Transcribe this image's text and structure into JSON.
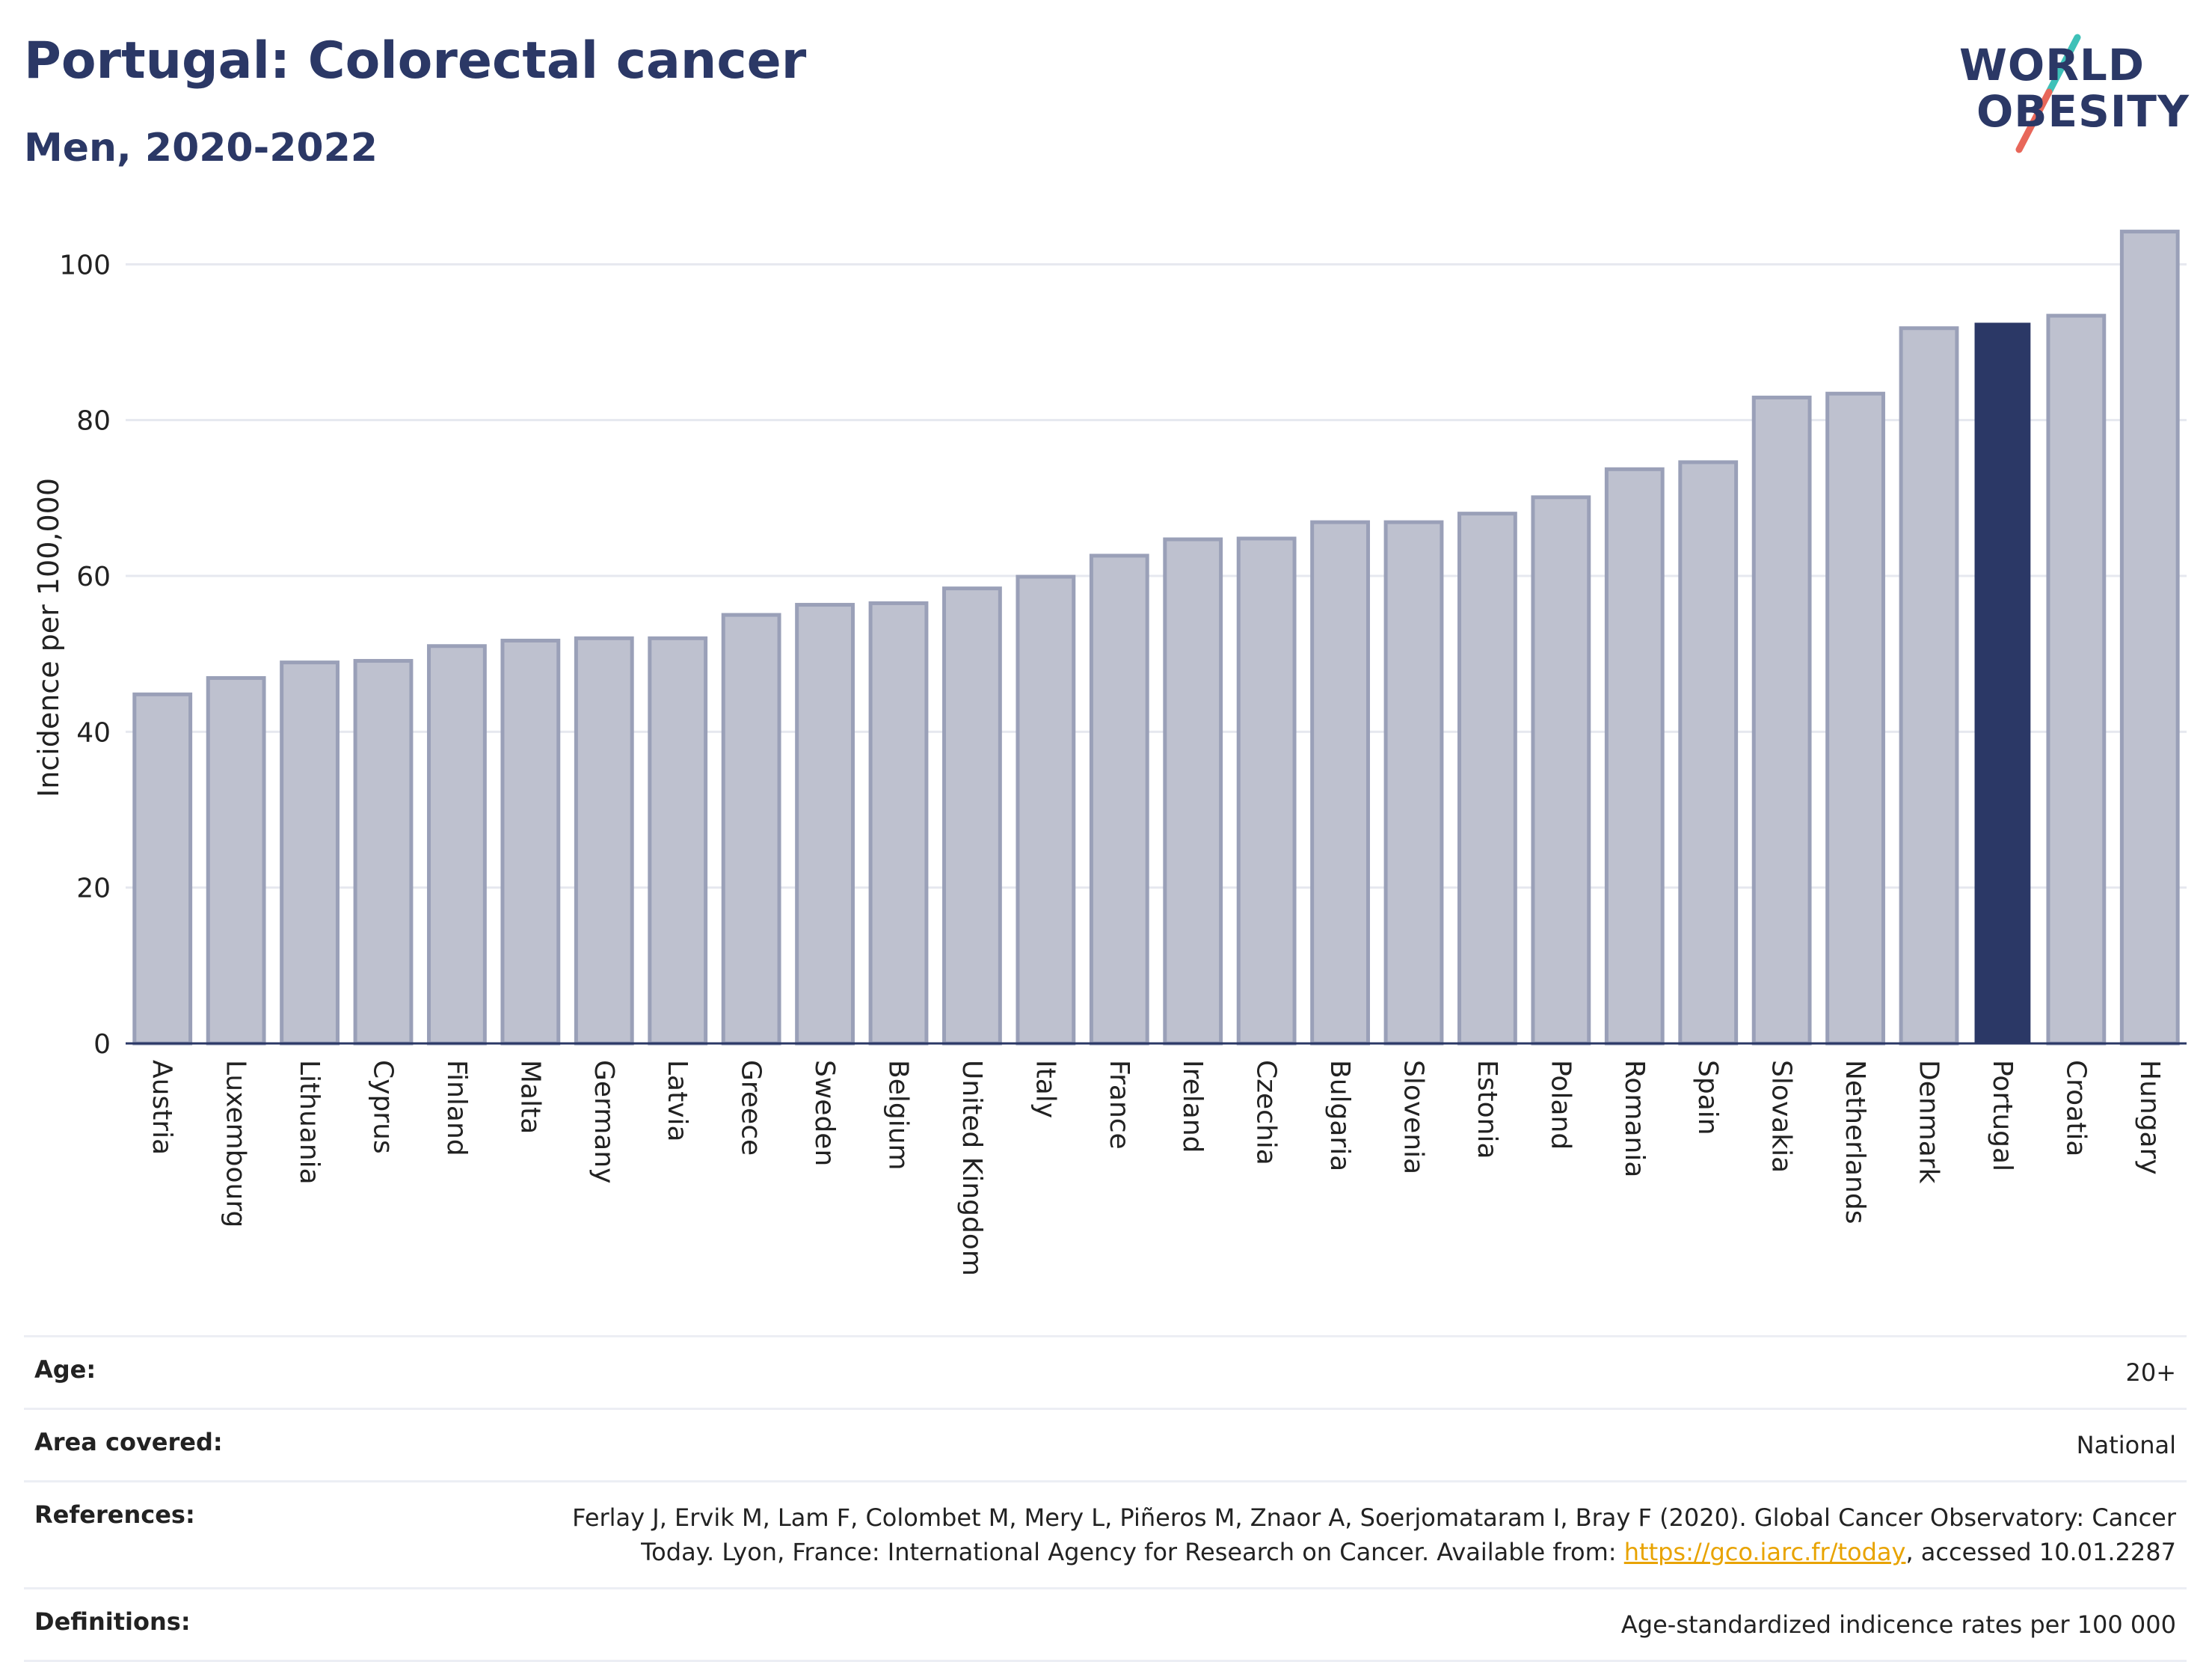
{
  "header": {
    "title": "Portugal: Colorectal cancer",
    "subtitle": "Men, 2020-2022"
  },
  "logo": {
    "line1": "WORLD",
    "line2": "OBESITY",
    "colors": {
      "text": "#2b3866",
      "slash_top": "#3ec1b8",
      "slash_bottom": "#e8675a"
    }
  },
  "chart_data": {
    "type": "bar",
    "title": "",
    "ylabel": "Incidence per 100,000",
    "xlabel": "",
    "ylim": [
      0,
      108
    ],
    "yticks": [
      0,
      20,
      40,
      60,
      80,
      100
    ],
    "grid": true,
    "categories": [
      "Austria",
      "Luxembourg",
      "Lithuania",
      "Cyprus",
      "Finland",
      "Malta",
      "Germany",
      "Latvia",
      "Greece",
      "Sweden",
      "Belgium",
      "United Kingdom",
      "Italy",
      "France",
      "Ireland",
      "Czechia",
      "Bulgaria",
      "Slovenia",
      "Estonia",
      "Poland",
      "Romania",
      "Spain",
      "Slovakia",
      "Netherlands",
      "Denmark",
      "Portugal",
      "Croatia",
      "Hungary"
    ],
    "values": [
      44.8,
      46.9,
      48.9,
      49.1,
      51.0,
      51.7,
      52.0,
      52.0,
      55.0,
      56.3,
      56.5,
      58.4,
      59.9,
      62.6,
      64.7,
      64.8,
      66.9,
      66.9,
      68.0,
      70.1,
      73.7,
      74.6,
      82.9,
      83.4,
      91.8,
      92.5,
      93.4,
      104.2
    ],
    "highlight": "Portugal",
    "colors": {
      "bar": "#bec1cf",
      "bar_edge": "#9aa0b8",
      "highlight": "#2b3866",
      "grid": "#e6e8ef",
      "axis": "#2b3866"
    }
  },
  "info_table": {
    "age": {
      "label": "Age:",
      "value": "20+"
    },
    "area": {
      "label": "Area covered:",
      "value": "National"
    },
    "references": {
      "label": "References:",
      "text_before": "Ferlay J, Ervik M, Lam F, Colombet M, Mery L, Piñeros M, Znaor A, Soerjomataram I, Bray F (2020). Global Cancer Observatory: Cancer Today. Lyon, France: International Agency for Research on Cancer. Available from: ",
      "link": "https://gco.iarc.fr/today",
      "text_after": ", accessed 10.01.2287"
    },
    "definitions": {
      "label": "Definitions:",
      "value": "Age-standardized indicence rates per 100 000"
    }
  }
}
